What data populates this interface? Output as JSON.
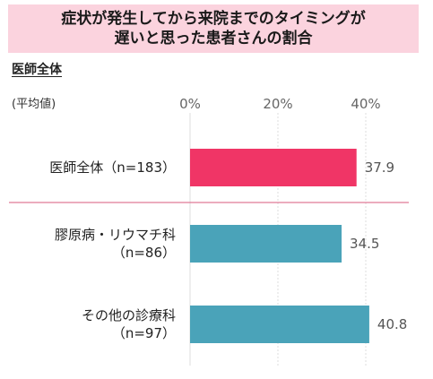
{
  "title_lines": [
    "症状が発生してから来院までのタイミングが",
    "遅いと思った患者さんの割合"
  ],
  "section_label": "医師全体",
  "unit_label": "(平均値)",
  "colors": {
    "title_bg": "#fbd3de",
    "primary": "#f03566",
    "secondary": "#4aa3b9",
    "divider": "#e07a98"
  },
  "chart_data": {
    "type": "bar",
    "orientation": "horizontal",
    "categories": [
      [
        "医師全体（n=183）"
      ],
      [
        "膠原病・リウマチ科",
        "（n=86）"
      ],
      [
        "その他の診療科",
        "（n=97）"
      ]
    ],
    "values": [
      37.9,
      34.5,
      40.8
    ],
    "value_labels": [
      "37.9",
      "34.5",
      "40.8"
    ],
    "xlim": [
      0,
      50
    ],
    "ticks": [
      0,
      20,
      40
    ],
    "tick_labels": [
      "0%",
      "20%",
      "40%"
    ],
    "bar_colors": [
      "#f03566",
      "#4aa3b9",
      "#4aa3b9"
    ],
    "grid": true
  }
}
